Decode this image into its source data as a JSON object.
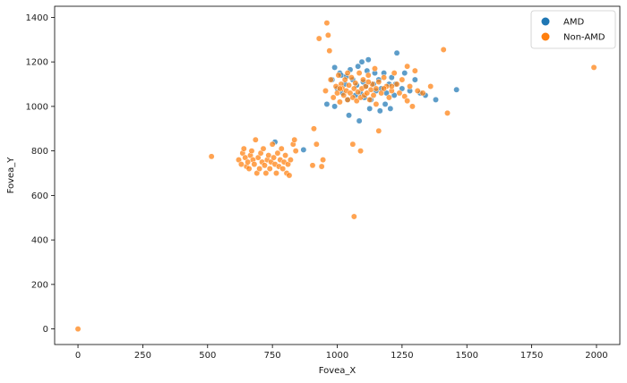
{
  "chart_data": {
    "type": "scatter",
    "title": "",
    "xlabel": "Fovea_X",
    "ylabel": "Fovea_Y",
    "xlim": [
      -90,
      2090
    ],
    "ylim": [
      -70,
      1450
    ],
    "xticks": [
      0,
      250,
      500,
      750,
      1000,
      1250,
      1500,
      1750,
      2000
    ],
    "yticks": [
      0,
      200,
      400,
      600,
      800,
      1000,
      1200,
      1400
    ],
    "xtick_labels": [
      "0",
      "250",
      "500",
      "750",
      "1000",
      "1250",
      "1500",
      "1750",
      "2000"
    ],
    "ytick_labels": [
      "0",
      "200",
      "400",
      "600",
      "800",
      "1000",
      "1200",
      "1400"
    ],
    "grid": false,
    "legend": {
      "placement": "top-right",
      "entries": [
        "AMD",
        "Non-AMD"
      ]
    },
    "series": [
      {
        "name": "AMD",
        "color": "#1f77b4",
        "points": [
          [
            960,
            1010
          ],
          [
            980,
            1120
          ],
          [
            990,
            1000
          ],
          [
            1000,
            1080
          ],
          [
            1010,
            1150
          ],
          [
            1020,
            1060
          ],
          [
            1030,
            1100
          ],
          [
            1040,
            1030
          ],
          [
            1050,
            1165
          ],
          [
            1060,
            1120
          ],
          [
            1070,
            1050
          ],
          [
            1080,
            1180
          ],
          [
            1090,
            1060
          ],
          [
            1095,
            1200
          ],
          [
            1100,
            1110
          ],
          [
            1110,
            1090
          ],
          [
            1120,
            1210
          ],
          [
            1130,
            1030
          ],
          [
            1140,
            1100
          ],
          [
            1150,
            1070
          ],
          [
            1160,
            1120
          ],
          [
            1170,
            1080
          ],
          [
            1180,
            1150
          ],
          [
            1190,
            1060
          ],
          [
            1200,
            1100
          ],
          [
            1210,
            1130
          ],
          [
            1220,
            1050
          ],
          [
            1230,
            1240
          ],
          [
            1250,
            1080
          ],
          [
            1260,
            1150
          ],
          [
            1280,
            1070
          ],
          [
            1300,
            1120
          ],
          [
            1320,
            1060
          ],
          [
            1340,
            1050
          ],
          [
            1380,
            1030
          ],
          [
            1460,
            1075
          ],
          [
            1045,
            960
          ],
          [
            1085,
            935
          ],
          [
            1125,
            990
          ],
          [
            1165,
            980
          ],
          [
            1205,
            990
          ],
          [
            760,
            840
          ],
          [
            870,
            805
          ],
          [
            1015,
            1140
          ],
          [
            1105,
            1040
          ],
          [
            1145,
            1150
          ],
          [
            1075,
            1095
          ],
          [
            990,
            1175
          ],
          [
            1185,
            1010
          ],
          [
            1225,
            1100
          ],
          [
            1035,
            1135
          ],
          [
            1115,
            1160
          ]
        ]
      },
      {
        "name": "Non-AMD",
        "color": "#ff7f0e",
        "points": [
          [
            0,
            0
          ],
          [
            515,
            775
          ],
          [
            620,
            760
          ],
          [
            630,
            740
          ],
          [
            635,
            790
          ],
          [
            640,
            810
          ],
          [
            645,
            770
          ],
          [
            650,
            730
          ],
          [
            655,
            750
          ],
          [
            660,
            720
          ],
          [
            665,
            780
          ],
          [
            670,
            800
          ],
          [
            675,
            760
          ],
          [
            680,
            740
          ],
          [
            685,
            850
          ],
          [
            690,
            700
          ],
          [
            695,
            770
          ],
          [
            700,
            720
          ],
          [
            705,
            790
          ],
          [
            710,
            750
          ],
          [
            715,
            810
          ],
          [
            720,
            735
          ],
          [
            725,
            700
          ],
          [
            730,
            760
          ],
          [
            735,
            780
          ],
          [
            740,
            720
          ],
          [
            745,
            750
          ],
          [
            750,
            830
          ],
          [
            755,
            770
          ],
          [
            760,
            740
          ],
          [
            765,
            700
          ],
          [
            770,
            790
          ],
          [
            775,
            730
          ],
          [
            780,
            760
          ],
          [
            785,
            810
          ],
          [
            790,
            720
          ],
          [
            795,
            750
          ],
          [
            800,
            780
          ],
          [
            805,
            700
          ],
          [
            810,
            740
          ],
          [
            815,
            690
          ],
          [
            820,
            760
          ],
          [
            830,
            830
          ],
          [
            835,
            850
          ],
          [
            840,
            800
          ],
          [
            905,
            735
          ],
          [
            910,
            900
          ],
          [
            920,
            830
          ],
          [
            940,
            730
          ],
          [
            945,
            760
          ],
          [
            960,
            1375
          ],
          [
            965,
            1320
          ],
          [
            970,
            1250
          ],
          [
            930,
            1305
          ],
          [
            955,
            1070
          ],
          [
            975,
            1120
          ],
          [
            985,
            1040
          ],
          [
            995,
            1090
          ],
          [
            1000,
            1060
          ],
          [
            1005,
            1140
          ],
          [
            1010,
            1020
          ],
          [
            1015,
            1100
          ],
          [
            1020,
            1080
          ],
          [
            1025,
            1050
          ],
          [
            1030,
            1120
          ],
          [
            1035,
            1070
          ],
          [
            1040,
            1030
          ],
          [
            1045,
            1095
          ],
          [
            1050,
            1060
          ],
          [
            1055,
            1130
          ],
          [
            1060,
            1040
          ],
          [
            1065,
            1080
          ],
          [
            1070,
            1105
          ],
          [
            1075,
            1025
          ],
          [
            1080,
            1065
          ],
          [
            1085,
            1150
          ],
          [
            1090,
            1040
          ],
          [
            1095,
            1080
          ],
          [
            1100,
            1120
          ],
          [
            1105,
            1050
          ],
          [
            1110,
            1090
          ],
          [
            1115,
            1060
          ],
          [
            1120,
            1140
          ],
          [
            1125,
            1030
          ],
          [
            1130,
            1075
          ],
          [
            1135,
            1100
          ],
          [
            1140,
            1050
          ],
          [
            1145,
            1170
          ],
          [
            1150,
            1080
          ],
          [
            1160,
            1110
          ],
          [
            1170,
            1060
          ],
          [
            1180,
            1130
          ],
          [
            1190,
            1090
          ],
          [
            1200,
            1040
          ],
          [
            1210,
            1070
          ],
          [
            1220,
            1150
          ],
          [
            1230,
            1100
          ],
          [
            1240,
            1060
          ],
          [
            1250,
            1120
          ],
          [
            1260,
            1045
          ],
          [
            1270,
            1180
          ],
          [
            1280,
            1090
          ],
          [
            1290,
            1000
          ],
          [
            1300,
            1160
          ],
          [
            1310,
            1070
          ],
          [
            1330,
            1060
          ],
          [
            1360,
            1090
          ],
          [
            1410,
            1255
          ],
          [
            1425,
            970
          ],
          [
            1990,
            1175
          ],
          [
            1060,
            830
          ],
          [
            1090,
            800
          ],
          [
            1065,
            505
          ],
          [
            1160,
            890
          ],
          [
            1270,
            1025
          ],
          [
            1210,
            1090
          ],
          [
            1180,
            1080
          ],
          [
            1150,
            1010
          ],
          [
            1120,
            1110
          ],
          [
            1040,
            1150
          ],
          [
            1010,
            1080
          ]
        ]
      }
    ]
  }
}
